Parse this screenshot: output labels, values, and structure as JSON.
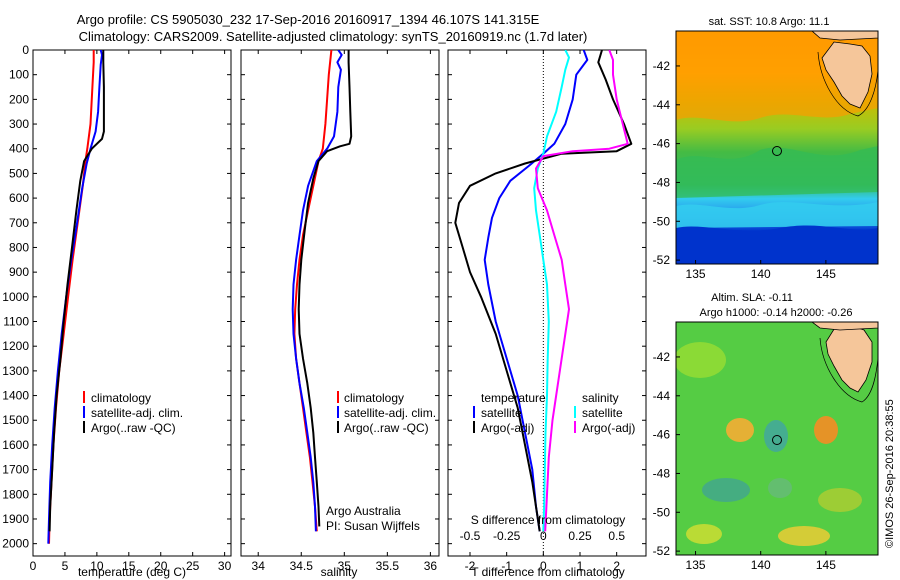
{
  "figure": {
    "title_line1": "Argo profile: CS 5905030_232 17-Sep-2016 20160917_1394 46.107S 141.315E",
    "title_line2": "Climatology: CARS2009. Satellite-adjusted climatology: synTS_20160919.nc (1.7d later)",
    "side_stamp": "©IMOS 26-Sep-2016 20:38:55"
  },
  "chart_data": [
    {
      "id": "temperature",
      "type": "line",
      "xlabel": "temperature (deg C)",
      "ylabel": "",
      "xlim": [
        0,
        31
      ],
      "ylim": [
        2050,
        0
      ],
      "xticks": [
        0,
        5,
        10,
        15,
        20,
        25,
        30
      ],
      "yticks": [
        0,
        100,
        200,
        300,
        400,
        500,
        600,
        700,
        800,
        900,
        1000,
        1100,
        1200,
        1300,
        1400,
        1500,
        1600,
        1700,
        1800,
        1900,
        2000
      ],
      "legend": [
        "climatology",
        "satellite-adj. clim.",
        "Argo(..raw -QC)"
      ],
      "legend_position": "lower-right",
      "series": [
        {
          "name": "climatology",
          "color": "#ff0000",
          "points": [
            [
              9.5,
              0
            ],
            [
              9.5,
              50
            ],
            [
              9.3,
              150
            ],
            [
              9.0,
              300
            ],
            [
              8.5,
              400
            ],
            [
              8.2,
              450
            ],
            [
              7.8,
              550
            ],
            [
              7.0,
              700
            ],
            [
              6.2,
              850
            ],
            [
              5.5,
              1000
            ],
            [
              4.8,
              1150
            ],
            [
              4.1,
              1300
            ],
            [
              3.6,
              1450
            ],
            [
              3.2,
              1600
            ],
            [
              2.9,
              1750
            ],
            [
              2.6,
              1900
            ],
            [
              2.5,
              2000
            ]
          ]
        },
        {
          "name": "satellite-adj. clim.",
          "color": "#0000ff",
          "points": [
            [
              10.6,
              0
            ],
            [
              10.8,
              20
            ],
            [
              10.6,
              60
            ],
            [
              10.4,
              150
            ],
            [
              10.2,
              250
            ],
            [
              9.8,
              330
            ],
            [
              9.0,
              400
            ],
            [
              8.4,
              460
            ],
            [
              7.7,
              560
            ],
            [
              6.9,
              700
            ],
            [
              6.0,
              850
            ],
            [
              5.2,
              1000
            ],
            [
              4.5,
              1150
            ],
            [
              3.9,
              1300
            ],
            [
              3.4,
              1450
            ],
            [
              3.0,
              1600
            ],
            [
              2.7,
              1750
            ],
            [
              2.5,
              1900
            ],
            [
              2.4,
              2000
            ]
          ]
        },
        {
          "name": "Argo(..raw -QC)",
          "color": "#000000",
          "points": [
            [
              11.0,
              0
            ],
            [
              11.0,
              50
            ],
            [
              11.1,
              150
            ],
            [
              11.1,
              250
            ],
            [
              11.1,
              330
            ],
            [
              10.8,
              360
            ],
            [
              9.2,
              400
            ],
            [
              8.0,
              450
            ],
            [
              7.4,
              530
            ],
            [
              6.8,
              650
            ],
            [
              6.1,
              800
            ],
            [
              5.4,
              950
            ],
            [
              4.8,
              1100
            ],
            [
              4.3,
              1250
            ],
            [
              3.7,
              1400
            ],
            [
              3.3,
              1550
            ],
            [
              3.0,
              1700
            ],
            [
              2.7,
              1850
            ],
            [
              2.6,
              1950
            ]
          ]
        }
      ]
    },
    {
      "id": "salinity",
      "type": "line",
      "xlabel": "salinity",
      "ylabel": "",
      "xlim": [
        33.8,
        36.1
      ],
      "ylim": [
        2050,
        0
      ],
      "xticks": [
        34,
        34.5,
        35,
        35.5,
        36
      ],
      "yticks": [
        0,
        100,
        200,
        300,
        400,
        500,
        600,
        700,
        800,
        900,
        1000,
        1100,
        1200,
        1300,
        1400,
        1500,
        1600,
        1700,
        1800,
        1900,
        2000
      ],
      "legend": [
        "climatology",
        "satellite-adj. clim.",
        "Argo(..raw -QC)"
      ],
      "legend_position": "lower-right",
      "annotations": [
        "Argo Australia",
        "PI: Susan Wijffels"
      ],
      "series": [
        {
          "name": "climatology",
          "color": "#ff0000",
          "points": [
            [
              34.85,
              0
            ],
            [
              34.82,
              100
            ],
            [
              34.8,
              200
            ],
            [
              34.78,
              300
            ],
            [
              34.75,
              400
            ],
            [
              34.7,
              450
            ],
            [
              34.64,
              550
            ],
            [
              34.58,
              650
            ],
            [
              34.52,
              750
            ],
            [
              34.48,
              850
            ],
            [
              34.45,
              950
            ],
            [
              34.43,
              1050
            ],
            [
              34.42,
              1150
            ],
            [
              34.44,
              1250
            ],
            [
              34.48,
              1350
            ],
            [
              34.52,
              1450
            ],
            [
              34.56,
              1550
            ],
            [
              34.6,
              1650
            ],
            [
              34.63,
              1750
            ],
            [
              34.66,
              1850
            ],
            [
              34.68,
              1950
            ]
          ]
        },
        {
          "name": "satellite-adj. clim.",
          "color": "#0000ff",
          "points": [
            [
              34.93,
              0
            ],
            [
              34.97,
              20
            ],
            [
              34.92,
              50
            ],
            [
              34.96,
              80
            ],
            [
              34.93,
              150
            ],
            [
              34.92,
              250
            ],
            [
              34.88,
              350
            ],
            [
              34.8,
              400
            ],
            [
              34.68,
              450
            ],
            [
              34.58,
              550
            ],
            [
              34.52,
              650
            ],
            [
              34.48,
              750
            ],
            [
              34.44,
              850
            ],
            [
              34.41,
              950
            ],
            [
              34.4,
              1050
            ],
            [
              34.41,
              1150
            ],
            [
              34.44,
              1250
            ],
            [
              34.48,
              1350
            ],
            [
              34.53,
              1450
            ],
            [
              34.57,
              1550
            ],
            [
              34.61,
              1650
            ],
            [
              34.64,
              1750
            ],
            [
              34.66,
              1850
            ],
            [
              34.67,
              1950
            ]
          ]
        },
        {
          "name": "Argo(..raw -QC)",
          "color": "#000000",
          "points": [
            [
              35.05,
              0
            ],
            [
              35.05,
              50
            ],
            [
              35.06,
              150
            ],
            [
              35.07,
              250
            ],
            [
              35.08,
              350
            ],
            [
              35.06,
              380
            ],
            [
              34.95,
              390
            ],
            [
              34.8,
              410
            ],
            [
              34.7,
              450
            ],
            [
              34.64,
              520
            ],
            [
              34.58,
              620
            ],
            [
              34.54,
              730
            ],
            [
              34.5,
              850
            ],
            [
              34.48,
              950
            ],
            [
              34.47,
              1050
            ],
            [
              34.48,
              1150
            ],
            [
              34.52,
              1250
            ],
            [
              34.57,
              1350
            ],
            [
              34.61,
              1450
            ],
            [
              34.64,
              1550
            ],
            [
              34.66,
              1650
            ],
            [
              34.68,
              1750
            ],
            [
              34.7,
              1850
            ],
            [
              34.71,
              1930
            ]
          ]
        }
      ]
    },
    {
      "id": "difference",
      "type": "line",
      "xlabel": "T difference from climatology",
      "xlabel_top": "S difference from climatology",
      "ylabel": "",
      "xlim": [
        -2.6,
        2.8
      ],
      "ylim": [
        2050,
        0
      ],
      "xticks": [
        -2,
        -1,
        0,
        1,
        2
      ],
      "xticks_s": [
        -0.5,
        -0.25,
        0,
        0.25,
        0.5
      ],
      "yticks": [
        0,
        100,
        200,
        300,
        400,
        500,
        600,
        700,
        800,
        900,
        1000,
        1100,
        1200,
        1300,
        1400,
        1500,
        1600,
        1700,
        1800,
        1900,
        2000
      ],
      "zero_line": "dotted",
      "legend_groups": [
        {
          "title": "temperature",
          "entries": [
            "satellite",
            "Argo(-adj)"
          ]
        },
        {
          "title": "salinity",
          "entries": [
            "satellite",
            "Argo(-adj)"
          ]
        }
      ],
      "legend_position": "lower-right",
      "series": [
        {
          "name": "temperature satellite",
          "color": "#0000ff",
          "points": [
            [
              1.1,
              0
            ],
            [
              1.2,
              40
            ],
            [
              0.9,
              100
            ],
            [
              0.8,
              200
            ],
            [
              0.6,
              300
            ],
            [
              0.3,
              380
            ],
            [
              0.0,
              420
            ],
            [
              -0.4,
              470
            ],
            [
              -0.9,
              530
            ],
            [
              -1.2,
              600
            ],
            [
              -1.4,
              680
            ],
            [
              -1.5,
              760
            ],
            [
              -1.6,
              850
            ],
            [
              -1.5,
              950
            ],
            [
              -1.3,
              1100
            ],
            [
              -1.0,
              1250
            ],
            [
              -0.7,
              1400
            ],
            [
              -0.5,
              1550
            ],
            [
              -0.3,
              1700
            ],
            [
              -0.2,
              1850
            ],
            [
              -0.1,
              1950
            ]
          ]
        },
        {
          "name": "temperature Argo(-adj)",
          "color": "#000000",
          "points": [
            [
              1.6,
              0
            ],
            [
              1.5,
              50
            ],
            [
              1.7,
              120
            ],
            [
              1.9,
              200
            ],
            [
              2.2,
              300
            ],
            [
              2.4,
              380
            ],
            [
              2.0,
              410
            ],
            [
              0.5,
              420
            ],
            [
              -0.5,
              460
            ],
            [
              -1.3,
              500
            ],
            [
              -2.0,
              550
            ],
            [
              -2.3,
              620
            ],
            [
              -2.4,
              700
            ],
            [
              -2.2,
              800
            ],
            [
              -2.0,
              900
            ],
            [
              -1.7,
              1000
            ],
            [
              -1.3,
              1150
            ],
            [
              -1.0,
              1300
            ],
            [
              -0.7,
              1450
            ],
            [
              -0.5,
              1600
            ],
            [
              -0.3,
              1750
            ],
            [
              -0.2,
              1850
            ],
            [
              -0.1,
              1950
            ]
          ]
        },
        {
          "name": "salinity satellite",
          "color": "#00ffff",
          "points": [
            [
              0.6,
              0
            ],
            [
              0.7,
              30
            ],
            [
              0.6,
              80
            ],
            [
              0.5,
              150
            ],
            [
              0.35,
              250
            ],
            [
              0.1,
              350
            ],
            [
              0.0,
              420
            ],
            [
              -0.15,
              480
            ],
            [
              -0.25,
              560
            ],
            [
              -0.2,
              650
            ],
            [
              -0.1,
              750
            ],
            [
              0.0,
              850
            ],
            [
              0.1,
              950
            ],
            [
              0.15,
              1100
            ],
            [
              0.12,
              1250
            ],
            [
              0.1,
              1400
            ],
            [
              0.06,
              1550
            ],
            [
              0.04,
              1700
            ],
            [
              0.02,
              1850
            ],
            [
              0.0,
              1950
            ]
          ]
        },
        {
          "name": "salinity Argo(-adj)",
          "color": "#ff00ff",
          "points": [
            [
              1.8,
              0
            ],
            [
              1.9,
              40
            ],
            [
              1.9,
              100
            ],
            [
              2.0,
              200
            ],
            [
              2.2,
              320
            ],
            [
              2.3,
              380
            ],
            [
              1.8,
              400
            ],
            [
              0.8,
              410
            ],
            [
              0.0,
              430
            ],
            [
              -0.2,
              480
            ],
            [
              -0.15,
              560
            ],
            [
              0.1,
              650
            ],
            [
              0.3,
              750
            ],
            [
              0.5,
              850
            ],
            [
              0.6,
              950
            ],
            [
              0.7,
              1050
            ],
            [
              0.55,
              1200
            ],
            [
              0.4,
              1350
            ],
            [
              0.25,
              1500
            ],
            [
              0.15,
              1650
            ],
            [
              0.1,
              1800
            ],
            [
              0.05,
              1950
            ]
          ]
        }
      ]
    },
    {
      "id": "sst_map",
      "type": "heatmap",
      "title": "sat. SST: 10.8 Argo: 11.1",
      "xticks": [
        135,
        140,
        145
      ],
      "yticks": [
        -42,
        -44,
        -46,
        -48,
        -50,
        -52
      ],
      "xlim": [
        133.5,
        149
      ],
      "ylim": [
        -52.2,
        -40.2
      ],
      "marker": {
        "lon": 141.3,
        "lat": -46.1
      },
      "colors": [
        "#0033cc",
        "#33ccee",
        "#33bb66",
        "#ccdd00",
        "#ff9900"
      ]
    },
    {
      "id": "sla_map",
      "type": "heatmap",
      "title": "Altim. SLA: -0.11",
      "subtitle": "Argo h1000: -0.14 h2000: -0.26",
      "xticks": [
        135,
        140,
        145
      ],
      "yticks": [
        -42,
        -44,
        -46,
        -48,
        -50,
        -52
      ],
      "xlim": [
        133.5,
        149
      ],
      "ylim": [
        -52.2,
        -40.2
      ],
      "marker": {
        "lon": 141.3,
        "lat": -46.1
      },
      "colors": [
        "#33bb55",
        "#77cc44",
        "#ccdd22",
        "#ff9922",
        "#55aa99"
      ]
    }
  ]
}
